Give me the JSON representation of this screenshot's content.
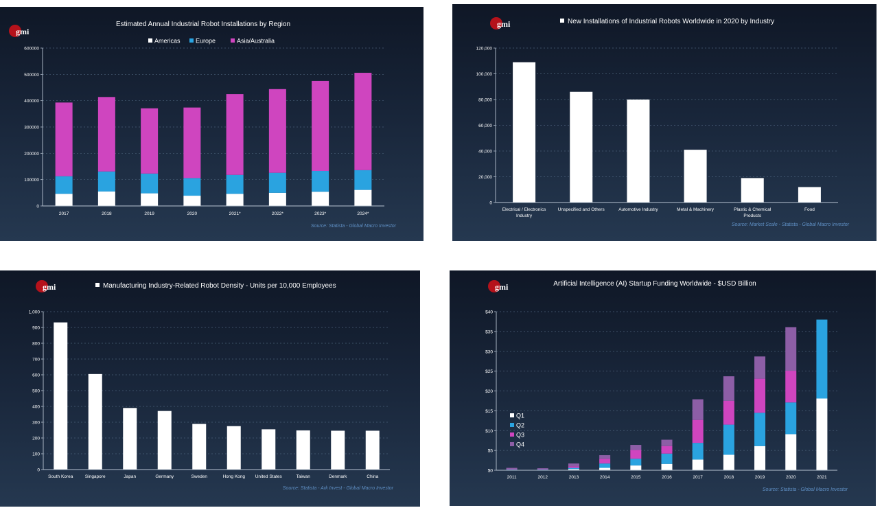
{
  "logo_text": "gmi",
  "colors": {
    "white": "#ffffff",
    "blue": "#2aa3e0",
    "magenta": "#cf45bf",
    "purple": "#8d5ea6",
    "grid": "#4a5f78",
    "axis": "#b9c4d2",
    "source": "#5f8fc4",
    "logo_red": "#b5121b"
  },
  "chart_data": [
    {
      "type": "bar",
      "stacked": true,
      "title": "Estimated Annual Industrial Robot Installations by Region",
      "categories": [
        "2017",
        "2018",
        "2019",
        "2020",
        "2021*",
        "2022*",
        "2023*",
        "2024*"
      ],
      "series": [
        {
          "name": "Americas",
          "color": "#ffffff",
          "values": [
            46000,
            55000,
            48000,
            39000,
            46000,
            50000,
            54000,
            61000
          ]
        },
        {
          "name": "Europe",
          "color": "#2aa3e0",
          "values": [
            67000,
            76000,
            75000,
            67000,
            72000,
            76000,
            79000,
            75000
          ]
        },
        {
          "name": "Asia/Australia",
          "color": "#cf45bf",
          "values": [
            280000,
            283000,
            248000,
            268000,
            307000,
            318000,
            342000,
            370000
          ]
        }
      ],
      "yticks": [
        "0",
        "100000",
        "200000",
        "300000",
        "400000",
        "500000",
        "600000"
      ],
      "ylim": [
        0,
        600000
      ],
      "legend_position": "top-center",
      "source": "Source: Statista - Global Macro Investor"
    },
    {
      "type": "bar",
      "title": "New Installations of Industrial Robots Worldwide in 2020 by Industry",
      "title_legend_swatch": "#ffffff",
      "categories": [
        [
          "Electrical / Electronics",
          "Industry"
        ],
        [
          "Unspecified and Others"
        ],
        [
          "Automotive Industry"
        ],
        [
          "Metal & Machinery"
        ],
        [
          "Plastic & Chemical",
          "Products"
        ],
        [
          "Food"
        ]
      ],
      "values": [
        109000,
        86000,
        80000,
        41000,
        19000,
        12000
      ],
      "yticks": [
        "0",
        "20,000",
        "40,000",
        "60,000",
        "80,000",
        "100,000",
        "120,000"
      ],
      "ylim": [
        0,
        120000
      ],
      "source": "Source: Market Scale - Statista - Global Macro Investor"
    },
    {
      "type": "bar",
      "title": "Manufacturing Industry-Related Robot Density - Units per 10,000 Employees",
      "title_legend_swatch": "#ffffff",
      "categories": [
        "South Korea",
        "Singapore",
        "Japan",
        "Germany",
        "Sweden",
        "Hong Kong",
        "United States",
        "Taiwan",
        "Denmark",
        "China"
      ],
      "values": [
        932,
        605,
        390,
        371,
        289,
        275,
        255,
        248,
        246,
        246
      ],
      "yticks": [
        "0",
        "100",
        "200",
        "300",
        "400",
        "500",
        "600",
        "700",
        "800",
        "900",
        "1,000"
      ],
      "ylim": [
        0,
        1000
      ],
      "source": "Source: Statista - Ark Invest - Global Macro Investor"
    },
    {
      "type": "bar",
      "stacked": true,
      "title": "Artificial Intelligence (AI) Startup Funding Worldwide - $USD Billion",
      "categories": [
        "2011",
        "2012",
        "2013",
        "2014",
        "2015",
        "2016",
        "2017",
        "2018",
        "2019",
        "2020",
        "2021"
      ],
      "series": [
        {
          "name": "Q1",
          "color": "#ffffff",
          "values": [
            0.1,
            0.1,
            0.3,
            0.6,
            1.2,
            1.6,
            2.7,
            3.9,
            6.1,
            9.1,
            18.1
          ]
        },
        {
          "name": "Q2",
          "color": "#2aa3e0",
          "values": [
            0.1,
            0.1,
            0.3,
            1.1,
            1.7,
            2.6,
            4.2,
            7.6,
            8.4,
            8.0,
            19.9
          ]
        },
        {
          "name": "Q3",
          "color": "#cf45bf",
          "values": [
            0.1,
            0.1,
            0.4,
            1.2,
            2.2,
            1.9,
            5.8,
            6.0,
            8.6,
            8.0,
            0
          ]
        },
        {
          "name": "Q4",
          "color": "#8d5ea6",
          "values": [
            0.3,
            0.2,
            0.7,
            0.9,
            1.3,
            1.6,
            5.2,
            6.2,
            5.6,
            11.0,
            0
          ]
        }
      ],
      "yticks": [
        "$0",
        "$5",
        "$10",
        "$15",
        "$20",
        "$25",
        "$30",
        "$35",
        "$40"
      ],
      "ylim": [
        0,
        40
      ],
      "legend_position": "left",
      "source": "Source: Statista - Global Macro Investor"
    }
  ]
}
